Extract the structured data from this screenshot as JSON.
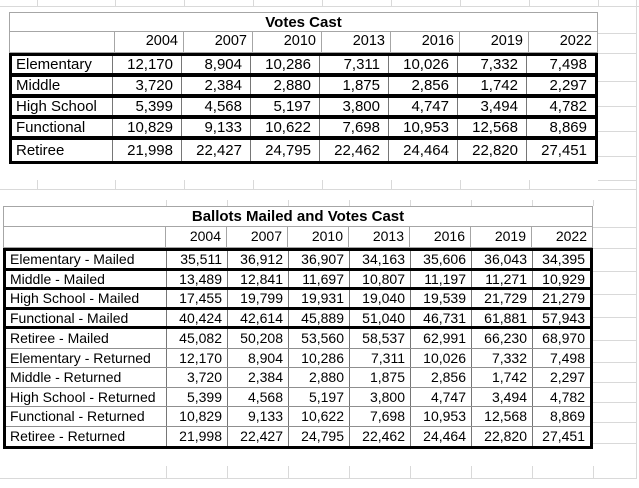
{
  "table1": {
    "title": "Votes Cast",
    "years": [
      "2004",
      "2007",
      "2010",
      "2013",
      "2016",
      "2019",
      "2022"
    ],
    "rows": [
      {
        "label": "Elementary",
        "values": [
          "12,170",
          "8,904",
          "10,286",
          "7,311",
          "10,026",
          "7,332",
          "7,498"
        ]
      },
      {
        "label": "Middle",
        "values": [
          "3,720",
          "2,384",
          "2,880",
          "1,875",
          "2,856",
          "1,742",
          "2,297"
        ]
      },
      {
        "label": "High School",
        "values": [
          "5,399",
          "4,568",
          "5,197",
          "3,800",
          "4,747",
          "3,494",
          "4,782"
        ]
      },
      {
        "label": "Functional",
        "values": [
          "10,829",
          "9,133",
          "10,622",
          "7,698",
          "10,953",
          "12,568",
          "8,869"
        ]
      },
      {
        "label": "Retiree",
        "values": [
          "21,998",
          "22,427",
          "24,795",
          "22,462",
          "24,464",
          "22,820",
          "27,451"
        ]
      }
    ]
  },
  "table2": {
    "title": "Ballots Mailed and Votes Cast",
    "years": [
      "2004",
      "2007",
      "2010",
      "2013",
      "2016",
      "2019",
      "2022"
    ],
    "rows": [
      {
        "label": "Elementary - Mailed",
        "values": [
          "35,511",
          "36,912",
          "36,907",
          "34,163",
          "35,606",
          "36,043",
          "34,395"
        ]
      },
      {
        "label": "Middle - Mailed",
        "values": [
          "13,489",
          "12,841",
          "11,697",
          "10,807",
          "11,197",
          "11,271",
          "10,929"
        ]
      },
      {
        "label": "High School - Mailed",
        "values": [
          "17,455",
          "19,799",
          "19,931",
          "19,040",
          "19,539",
          "21,729",
          "21,279"
        ]
      },
      {
        "label": "Functional - Mailed",
        "values": [
          "40,424",
          "42,614",
          "45,889",
          "51,040",
          "46,731",
          "61,881",
          "57,943"
        ]
      },
      {
        "label": "Retiree - Mailed",
        "values": [
          "45,082",
          "50,208",
          "53,560",
          "58,537",
          "62,991",
          "66,230",
          "68,970"
        ]
      },
      {
        "label": "Elementary - Returned",
        "values": [
          "12,170",
          "8,904",
          "10,286",
          "7,311",
          "10,026",
          "7,332",
          "7,498"
        ]
      },
      {
        "label": "Middle - Returned",
        "values": [
          "3,720",
          "2,384",
          "2,880",
          "1,875",
          "2,856",
          "1,742",
          "2,297"
        ]
      },
      {
        "label": "High School - Returned",
        "values": [
          "5,399",
          "4,568",
          "5,197",
          "3,800",
          "4,747",
          "3,494",
          "4,782"
        ]
      },
      {
        "label": "Functional - Returned",
        "values": [
          "10,829",
          "9,133",
          "10,622",
          "7,698",
          "10,953",
          "12,568",
          "8,869"
        ]
      },
      {
        "label": "Retiree - Returned",
        "values": [
          "21,998",
          "22,427",
          "24,795",
          "22,462",
          "24,464",
          "22,820",
          "27,451"
        ]
      }
    ]
  },
  "colors": {
    "thick_border": "#000000",
    "thin_cell_border": "#767676",
    "header_border": "#a6a6a6",
    "gridline": "#d9d9d9",
    "background": "#ffffff",
    "text": "#000000"
  }
}
